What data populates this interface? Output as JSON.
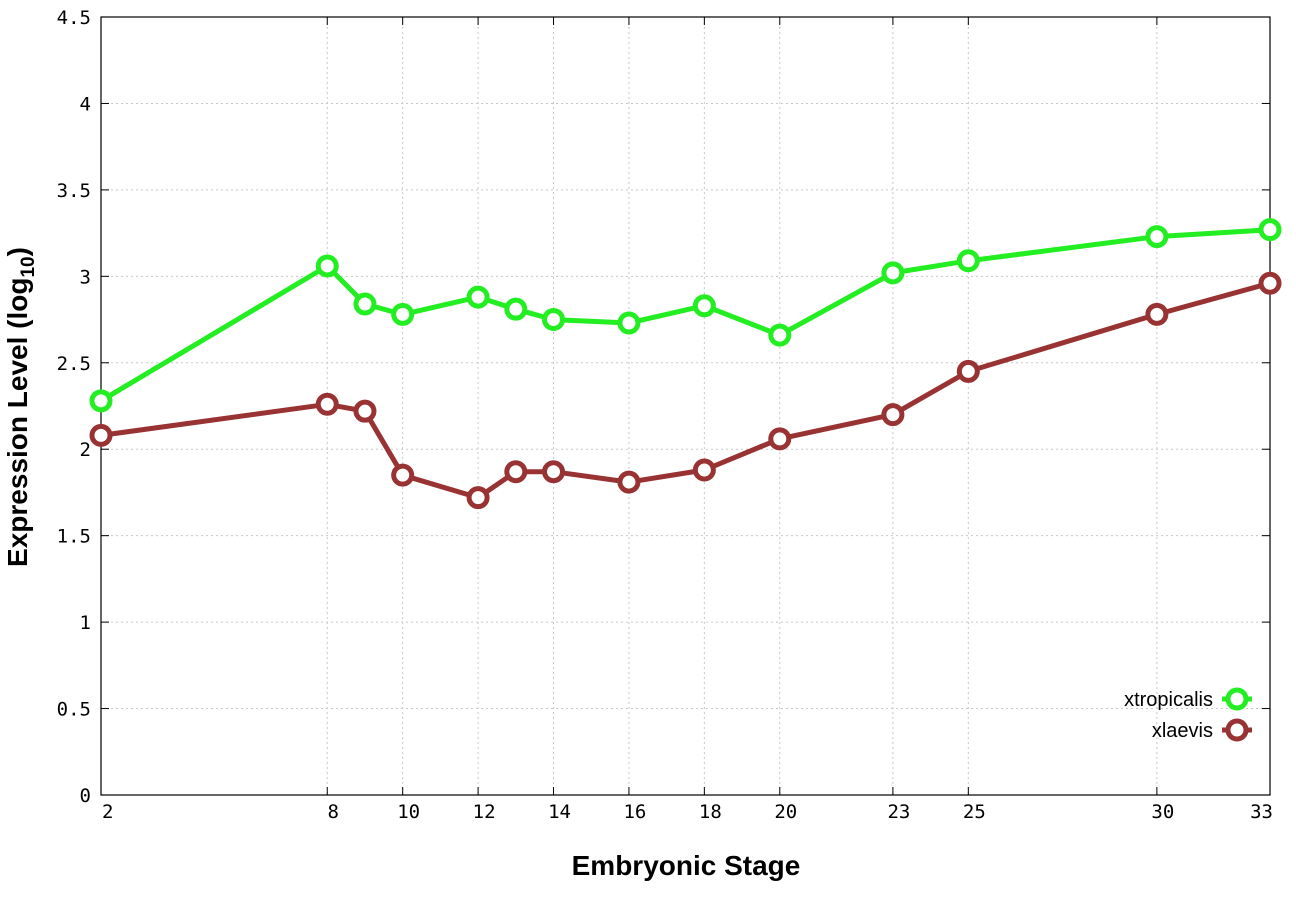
{
  "chart_data": {
    "type": "line",
    "title": "",
    "xlabel": "Embryonic Stage",
    "ylabel_main": "Expression Level (log",
    "ylabel_sub": "10",
    "ylabel_close": ")",
    "xlim": [
      2,
      33
    ],
    "ylim": [
      0,
      4.5
    ],
    "x_ticks": [
      2,
      8,
      10,
      12,
      14,
      16,
      18,
      20,
      23,
      25,
      30,
      33
    ],
    "y_ticks": [
      0,
      0.5,
      1,
      1.5,
      2,
      2.5,
      3,
      3.5,
      4,
      4.5
    ],
    "y_tick_labels": [
      "0",
      "0.5",
      "1",
      "1.5",
      "2",
      "2.5",
      "3",
      "3.5",
      "4",
      "4.5"
    ],
    "grid": true,
    "legend_position": "bottom-right",
    "x": [
      2,
      8,
      9,
      10,
      12,
      13,
      14,
      16,
      18,
      20,
      23,
      25,
      30,
      33
    ],
    "series": [
      {
        "name": "xtropicalis",
        "color": "#22ee22",
        "values": [
          2.28,
          3.06,
          2.84,
          2.78,
          2.88,
          2.81,
          2.75,
          2.73,
          2.83,
          2.66,
          3.02,
          3.09,
          3.23,
          3.27
        ]
      },
      {
        "name": "xlaevis",
        "color": "#993333",
        "values": [
          2.08,
          2.26,
          2.22,
          1.85,
          1.72,
          1.87,
          1.87,
          1.81,
          1.88,
          2.06,
          2.2,
          2.45,
          2.78,
          2.96
        ]
      }
    ]
  }
}
